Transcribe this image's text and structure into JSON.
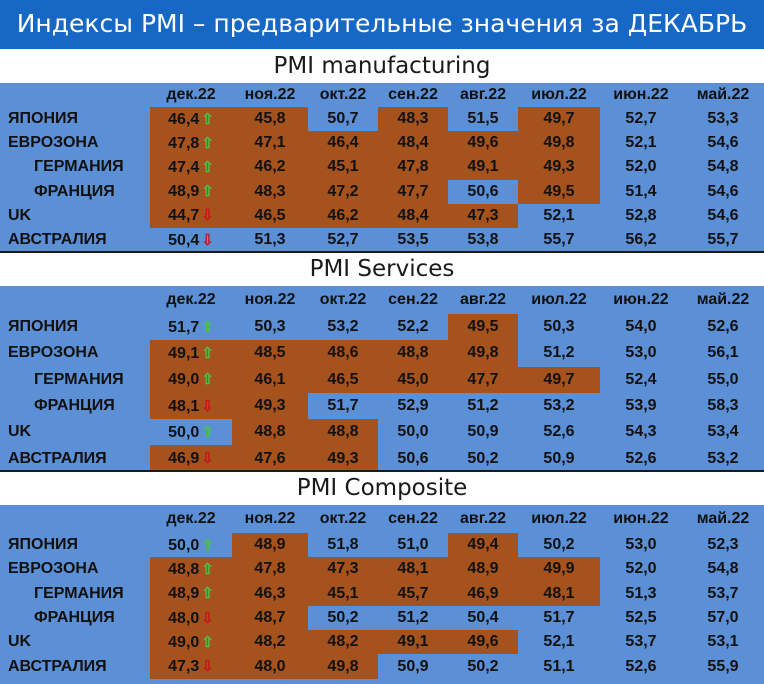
{
  "title": "Индексы PMI – предварительные значения за ДЕКАБРЬ",
  "months": [
    "дек.22",
    "ноя.22",
    "окт.22",
    "сен.22",
    "авг.22",
    "июл.22",
    "июн.22",
    "май.22"
  ],
  "sections": [
    {
      "title": "PMI manufacturing",
      "rows": [
        {
          "label": "ЯПОНИЯ",
          "indent": false,
          "values": [
            "46,4",
            "45,8",
            "50,7",
            "48,3",
            "51,5",
            "49,7",
            "52,7",
            "53,3"
          ],
          "trend": "up",
          "brown": [
            0,
            1,
            3,
            5
          ]
        },
        {
          "label": "ЕВРОЗОНА",
          "indent": false,
          "values": [
            "47,8",
            "47,1",
            "46,4",
            "48,4",
            "49,6",
            "49,8",
            "52,1",
            "54,6"
          ],
          "trend": "up",
          "brown": [
            0,
            1,
            2,
            3,
            4,
            5
          ]
        },
        {
          "label": "ГЕРМАНИЯ",
          "indent": true,
          "values": [
            "47,4",
            "46,2",
            "45,1",
            "47,8",
            "49,1",
            "49,3",
            "52,0",
            "54,8"
          ],
          "trend": "up",
          "brown": [
            0,
            1,
            2,
            3,
            4,
            5
          ]
        },
        {
          "label": "ФРАНЦИЯ",
          "indent": true,
          "values": [
            "48,9",
            "48,3",
            "47,2",
            "47,7",
            "50,6",
            "49,5",
            "51,4",
            "54,6"
          ],
          "trend": "up",
          "brown": [
            0,
            1,
            2,
            3,
            5
          ]
        },
        {
          "label": "UK",
          "indent": false,
          "values": [
            "44,7",
            "46,5",
            "46,2",
            "48,4",
            "47,3",
            "52,1",
            "52,8",
            "54,6"
          ],
          "trend": "down",
          "brown": [
            0,
            1,
            2,
            3,
            4
          ]
        },
        {
          "label": "АВСТРАЛИЯ",
          "indent": false,
          "values": [
            "50,4",
            "51,3",
            "52,7",
            "53,5",
            "53,8",
            "55,7",
            "56,2",
            "55,7"
          ],
          "trend": "down",
          "brown": []
        }
      ]
    },
    {
      "title": "PMI Services",
      "rows": [
        {
          "label": "ЯПОНИЯ",
          "indent": false,
          "values": [
            "51,7",
            "50,3",
            "53,2",
            "52,2",
            "49,5",
            "50,3",
            "54,0",
            "52,6"
          ],
          "trend": "up",
          "brown": [
            4
          ]
        },
        {
          "label": "ЕВРОЗОНА",
          "indent": false,
          "values": [
            "49,1",
            "48,5",
            "48,6",
            "48,8",
            "49,8",
            "51,2",
            "53,0",
            "56,1"
          ],
          "trend": "up",
          "brown": [
            0,
            1,
            2,
            3,
            4
          ]
        },
        {
          "label": "ГЕРМАНИЯ",
          "indent": true,
          "values": [
            "49,0",
            "46,1",
            "46,5",
            "45,0",
            "47,7",
            "49,7",
            "52,4",
            "55,0"
          ],
          "trend": "up",
          "brown": [
            0,
            1,
            2,
            3,
            4,
            5
          ]
        },
        {
          "label": "ФРАНЦИЯ",
          "indent": true,
          "values": [
            "48,1",
            "49,3",
            "51,7",
            "52,9",
            "51,2",
            "53,2",
            "53,9",
            "58,3"
          ],
          "trend": "down",
          "brown": [
            0,
            1
          ]
        },
        {
          "label": "UK",
          "indent": false,
          "values": [
            "50,0",
            "48,8",
            "48,8",
            "50,0",
            "50,9",
            "52,6",
            "54,3",
            "53,4"
          ],
          "trend": "up",
          "brown": [
            1,
            2
          ]
        },
        {
          "label": "АВСТРАЛИЯ",
          "indent": false,
          "values": [
            "46,9",
            "47,6",
            "49,3",
            "50,6",
            "50,2",
            "50,9",
            "52,6",
            "53,2"
          ],
          "trend": "down",
          "brown": [
            0,
            1,
            2
          ]
        }
      ]
    },
    {
      "title": "PMI Composite",
      "rows": [
        {
          "label": "ЯПОНИЯ",
          "indent": false,
          "values": [
            "50,0",
            "48,9",
            "51,8",
            "51,0",
            "49,4",
            "50,2",
            "53,0",
            "52,3"
          ],
          "trend": "up",
          "brown": [
            1,
            4
          ]
        },
        {
          "label": "ЕВРОЗОНА",
          "indent": false,
          "values": [
            "48,8",
            "47,8",
            "47,3",
            "48,1",
            "48,9",
            "49,9",
            "52,0",
            "54,8"
          ],
          "trend": "up",
          "brown": [
            0,
            1,
            2,
            3,
            4,
            5
          ]
        },
        {
          "label": "ГЕРМАНИЯ",
          "indent": true,
          "values": [
            "48,9",
            "46,3",
            "45,1",
            "45,7",
            "46,9",
            "48,1",
            "51,3",
            "53,7"
          ],
          "trend": "up",
          "brown": [
            0,
            1,
            2,
            3,
            4,
            5
          ]
        },
        {
          "label": "ФРАНЦИЯ",
          "indent": true,
          "values": [
            "48,0",
            "48,7",
            "50,2",
            "51,2",
            "50,4",
            "51,7",
            "52,5",
            "57,0"
          ],
          "trend": "down",
          "brown": [
            0,
            1
          ]
        },
        {
          "label": "UK",
          "indent": false,
          "values": [
            "49,0",
            "48,2",
            "48,2",
            "49,1",
            "49,6",
            "52,1",
            "53,7",
            "53,1"
          ],
          "trend": "up",
          "brown": [
            0,
            1,
            2,
            3,
            4
          ]
        },
        {
          "label": "АВСТРАЛИЯ",
          "indent": false,
          "values": [
            "47,3",
            "48,0",
            "49,8",
            "50,9",
            "50,2",
            "51,1",
            "52,6",
            "55,9"
          ],
          "trend": "down",
          "brown": [
            0,
            1,
            2
          ]
        }
      ]
    }
  ],
  "colors": {
    "brown": "#a6521d",
    "blue_bg": "#5b8fd6",
    "banner": "#1767c4",
    "up_arrow": "#4cc24a",
    "down_arrow": "#c8151b"
  }
}
